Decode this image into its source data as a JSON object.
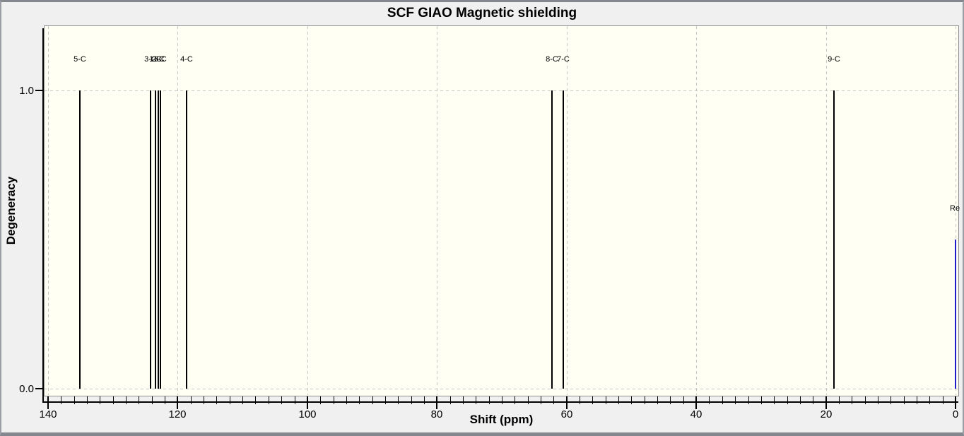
{
  "window": {
    "title": "SCF GIAO Magnetic shielding"
  },
  "chart_data": {
    "type": "line",
    "subtype": "stick-spectrum",
    "title": "SCF GIAO Magnetic shielding",
    "xlabel": "Shift (ppm)",
    "ylabel": "Degeneracy",
    "x_axis": {
      "min": 0,
      "max": 140,
      "reversed": true,
      "major_tick_step": 20,
      "minor_tick_step": 2,
      "major_ticks": [
        140,
        120,
        100,
        80,
        60,
        40,
        20,
        0
      ],
      "major_tick_labels": [
        "140",
        "120",
        "100",
        "80",
        "60",
        "40",
        "20",
        "0"
      ]
    },
    "y_axis": {
      "min": 0.0,
      "max": 1.22,
      "ticks": [
        0.0,
        1.0
      ],
      "tick_labels": [
        "0.0",
        "1.0"
      ]
    },
    "grid": true,
    "legend": "none",
    "peaks": [
      {
        "label": "5-C",
        "shift_ppm": 135.1,
        "degeneracy": 1.0
      },
      {
        "label": "3-C",
        "shift_ppm": 124.2,
        "degeneracy": 1.0
      },
      {
        "label": "1-C",
        "shift_ppm": 123.4,
        "degeneracy": 1.0
      },
      {
        "label": "2-C",
        "shift_ppm": 123.0,
        "degeneracy": 1.0
      },
      {
        "label": "6-C",
        "shift_ppm": 122.7,
        "degeneracy": 1.0
      },
      {
        "label": "4-C",
        "shift_ppm": 118.6,
        "degeneracy": 1.0
      },
      {
        "label": "8-C",
        "shift_ppm": 62.3,
        "degeneracy": 1.0
      },
      {
        "label": "7-C",
        "shift_ppm": 60.5,
        "degeneracy": 1.0
      },
      {
        "label": "9-C",
        "shift_ppm": 18.8,
        "degeneracy": 1.0
      }
    ],
    "reference_peak": {
      "label": "Re",
      "shift_ppm": 0.0,
      "height": 0.5,
      "color": "#1c1ccd"
    },
    "colors": {
      "peak": "#000000",
      "reference": "#1c1ccd",
      "grid": "#c6c6c6",
      "plot_background": "#fffff3",
      "frame_background": "#f0f0f0",
      "plot_border": "#8d8d8d",
      "window_border": "#84878e",
      "axis": "#000000",
      "text": "#000000"
    }
  }
}
